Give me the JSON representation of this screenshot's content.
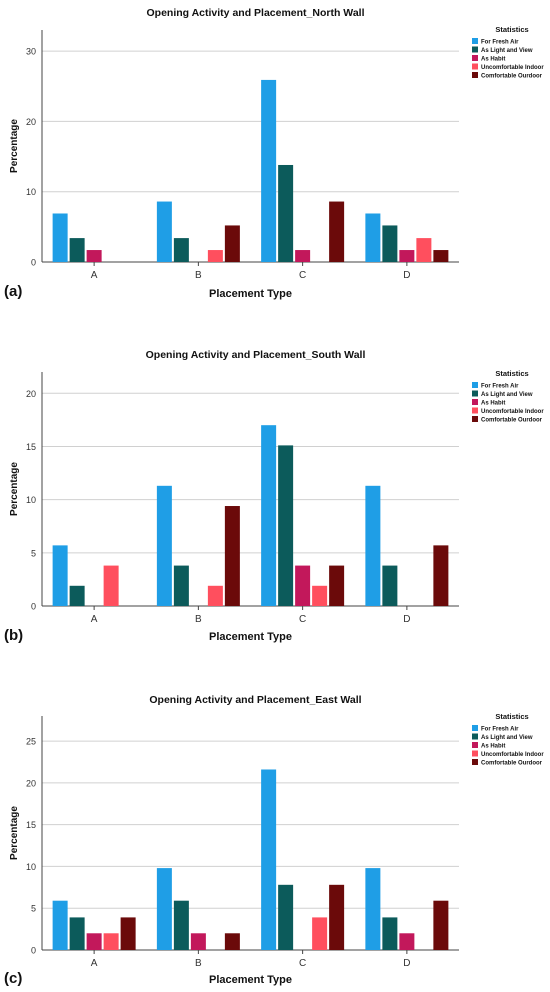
{
  "legend_title": "Statistics",
  "chart_data": [
    {
      "type": "bar",
      "panel_label": "(a)",
      "title": "Opening Activity and Placement_North Wall",
      "xlabel": "Placement Type",
      "ylabel": "Percentage",
      "categories": [
        "A",
        "B",
        "C",
        "D"
      ],
      "ylim": [
        0,
        33
      ],
      "yticks": [
        0,
        10,
        20,
        30
      ],
      "grid": true,
      "legend": "top-right",
      "series": [
        {
          "name": "For Fresh Air",
          "color": "#1f9ee6",
          "values": [
            6.9,
            8.6,
            25.9,
            6.9
          ]
        },
        {
          "name": "As Light and View",
          "color": "#0c5b5b",
          "values": [
            3.4,
            3.4,
            13.8,
            5.2
          ]
        },
        {
          "name": "As Habit",
          "color": "#c2185b",
          "values": [
            1.7,
            0,
            1.7,
            1.7
          ]
        },
        {
          "name": "Uncomfortable Indoor",
          "color": "#ff4f5e",
          "values": [
            0,
            1.7,
            0,
            3.4
          ]
        },
        {
          "name": "Comfortable Ourdoor",
          "color": "#6b0a0a",
          "values": [
            0,
            5.2,
            8.6,
            1.7
          ]
        }
      ]
    },
    {
      "type": "bar",
      "panel_label": "(b)",
      "title": "Opening Activity and Placement_South Wall",
      "xlabel": "Placement Type",
      "ylabel": "Percentage",
      "categories": [
        "A",
        "B",
        "C",
        "D"
      ],
      "ylim": [
        0,
        22
      ],
      "yticks": [
        0,
        5,
        10,
        15,
        20
      ],
      "grid": true,
      "legend": "top-right",
      "series": [
        {
          "name": "For Fresh Air",
          "color": "#1f9ee6",
          "values": [
            5.7,
            11.3,
            17.0,
            11.3
          ]
        },
        {
          "name": "As Light and View",
          "color": "#0c5b5b",
          "values": [
            1.9,
            3.8,
            15.1,
            3.8
          ]
        },
        {
          "name": "As Habit",
          "color": "#c2185b",
          "values": [
            0,
            0,
            3.8,
            0
          ]
        },
        {
          "name": "Uncomfortable Indoor",
          "color": "#ff4f5e",
          "values": [
            3.8,
            1.9,
            1.9,
            0
          ]
        },
        {
          "name": "Comfortable Ourdoor",
          "color": "#6b0a0a",
          "values": [
            0,
            9.4,
            3.8,
            5.7
          ]
        }
      ]
    },
    {
      "type": "bar",
      "panel_label": "(c)",
      "title": "Opening Activity and Placement_East Wall",
      "xlabel": "Placement Type",
      "ylabel": "Percentage",
      "categories": [
        "A",
        "B",
        "C",
        "D"
      ],
      "ylim": [
        0,
        28
      ],
      "yticks": [
        0,
        5,
        10,
        15,
        20,
        25
      ],
      "grid": true,
      "legend": "top-right",
      "series": [
        {
          "name": "For Fresh Air",
          "color": "#1f9ee6",
          "values": [
            5.9,
            9.8,
            21.6,
            9.8
          ]
        },
        {
          "name": "As Light and View",
          "color": "#0c5b5b",
          "values": [
            3.9,
            5.9,
            7.8,
            3.9
          ]
        },
        {
          "name": "As Habit",
          "color": "#c2185b",
          "values": [
            2.0,
            2.0,
            0,
            2.0
          ]
        },
        {
          "name": "Uncomfortable Indoor",
          "color": "#ff4f5e",
          "values": [
            2.0,
            0,
            3.9,
            0
          ]
        },
        {
          "name": "Comfortable Ourdoor",
          "color": "#6b0a0a",
          "values": [
            3.9,
            2.0,
            7.8,
            5.9
          ]
        }
      ]
    }
  ]
}
